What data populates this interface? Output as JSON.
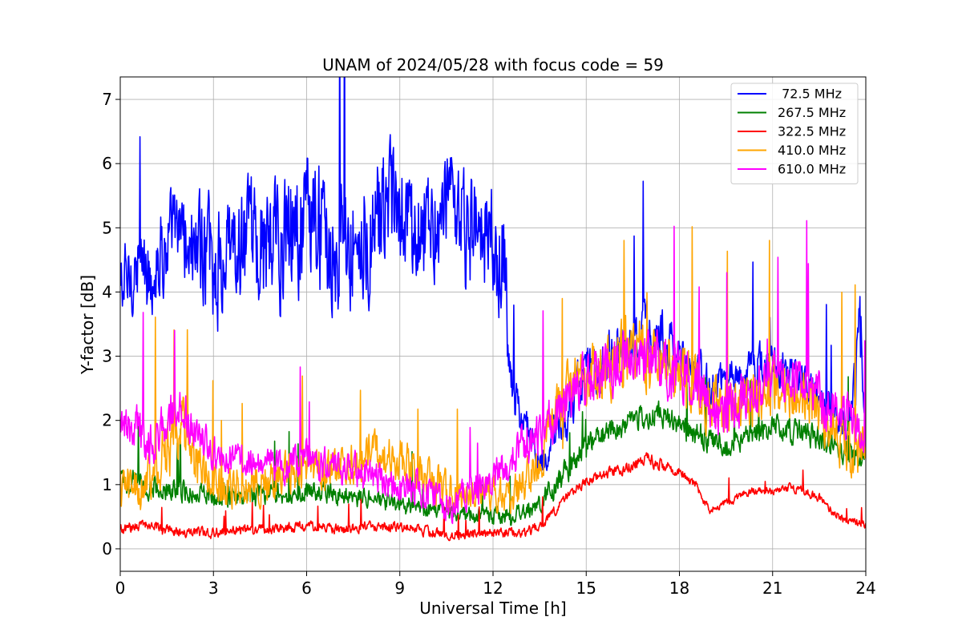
{
  "chart_data": {
    "type": "line",
    "title": "UNAM of 2024/05/28 with focus code = 59",
    "xlabel": "Universal Time [h]",
    "ylabel": "Y-factor [dB]",
    "xlim": [
      0,
      24
    ],
    "ylim": [
      -0.35,
      7.35
    ],
    "xticks": [
      0,
      3,
      6,
      9,
      12,
      15,
      18,
      21,
      24
    ],
    "yticks": [
      0,
      1,
      2,
      3,
      4,
      5,
      6,
      7
    ],
    "grid": true,
    "legend_position": "top-right",
    "series": [
      {
        "name": " 72.5 MHz",
        "color": "#0000ff",
        "x": [
          0,
          0.5,
          1,
          1.5,
          2,
          2.5,
          3,
          3.5,
          4,
          4.5,
          5,
          5.5,
          6,
          6.5,
          7,
          7.5,
          8,
          8.5,
          9,
          9.5,
          10,
          10.5,
          11,
          11.5,
          12,
          12.4,
          12.5,
          13,
          13.5,
          14,
          14.5,
          15,
          15.5,
          16,
          16.5,
          17,
          17.5,
          18,
          18.5,
          19,
          19.5,
          20,
          20.5,
          21,
          21.5,
          22,
          22.5,
          23,
          23.5,
          23.8,
          24
        ],
        "y": [
          4.0,
          4.4,
          4.3,
          4.8,
          4.9,
          4.6,
          4.4,
          4.5,
          4.6,
          4.8,
          4.7,
          4.9,
          5.1,
          5.0,
          4.8,
          4.9,
          5.0,
          5.1,
          5.2,
          5.0,
          5.3,
          5.1,
          5.0,
          4.9,
          4.7,
          4.5,
          2.6,
          2.0,
          1.4,
          1.7,
          2.2,
          2.7,
          2.9,
          3.2,
          3.3,
          3.4,
          3.3,
          2.9,
          2.8,
          2.5,
          2.6,
          2.7,
          2.8,
          2.9,
          2.8,
          2.6,
          2.3,
          2.1,
          2.0,
          3.5,
          2.6
        ],
        "spread": [
          1.0,
          0.9,
          1.0,
          1.1,
          1.0,
          1.2,
          1.4,
          1.3,
          1.4,
          1.6,
          1.6,
          1.6,
          1.5,
          1.6,
          1.8,
          1.7,
          1.6,
          1.5,
          1.4,
          1.5,
          1.5,
          1.4,
          1.5,
          1.4,
          1.5,
          1.6,
          0.7,
          0.5,
          0.4,
          0.5,
          0.6,
          0.6,
          0.6,
          0.6,
          0.6,
          0.6,
          0.6,
          0.6,
          0.5,
          0.5,
          0.5,
          0.5,
          0.5,
          0.5,
          0.5,
          0.4,
          0.4,
          0.4,
          0.4,
          1.3,
          0.6
        ]
      },
      {
        "name": "267.5 MHz",
        "color": "#008000",
        "x": [
          0,
          0.5,
          1,
          2,
          3,
          4,
          5,
          6,
          7,
          8,
          9,
          10,
          11,
          12,
          12.5,
          13,
          13.5,
          14,
          14.5,
          15,
          15.5,
          16,
          16.5,
          17,
          17.5,
          18,
          18.5,
          19,
          19.5,
          20,
          20.5,
          21,
          21.5,
          22,
          22.5,
          23,
          23.5,
          24
        ],
        "y": [
          1.1,
          1.0,
          0.95,
          0.9,
          0.85,
          0.8,
          0.85,
          0.9,
          0.85,
          0.75,
          0.7,
          0.6,
          0.55,
          0.5,
          0.5,
          0.6,
          0.7,
          1.0,
          1.3,
          1.6,
          1.8,
          1.9,
          2.0,
          2.1,
          2.05,
          1.9,
          1.8,
          1.7,
          1.6,
          1.7,
          1.8,
          1.9,
          1.85,
          1.8,
          1.7,
          1.6,
          1.5,
          1.45
        ],
        "spread": [
          0.3,
          0.3,
          0.25,
          0.25,
          0.25,
          0.25,
          0.25,
          0.25,
          0.25,
          0.25,
          0.25,
          0.2,
          0.2,
          0.2,
          0.2,
          0.2,
          0.25,
          0.3,
          0.3,
          0.3,
          0.3,
          0.3,
          0.3,
          0.3,
          0.3,
          0.3,
          0.3,
          0.3,
          0.3,
          0.3,
          0.3,
          0.3,
          0.3,
          0.3,
          0.3,
          0.3,
          0.3,
          0.3
        ]
      },
      {
        "name": "322.5 MHz",
        "color": "#ff0000",
        "x": [
          0,
          0.5,
          1,
          1.5,
          2,
          3,
          4,
          5,
          6,
          7,
          8,
          9,
          10,
          11,
          12,
          12.5,
          13,
          13.5,
          14,
          14.5,
          15,
          15.5,
          16,
          16.5,
          17,
          17.5,
          18,
          18.5,
          19,
          19.5,
          20,
          20.5,
          21,
          21.5,
          22,
          22.5,
          23,
          23.5,
          24
        ],
        "y": [
          0.3,
          0.35,
          0.4,
          0.3,
          0.25,
          0.25,
          0.3,
          0.3,
          0.35,
          0.3,
          0.35,
          0.35,
          0.25,
          0.2,
          0.25,
          0.25,
          0.25,
          0.35,
          0.6,
          0.9,
          1.05,
          1.15,
          1.2,
          1.3,
          1.4,
          1.3,
          1.2,
          1.0,
          0.6,
          0.7,
          0.85,
          0.9,
          0.9,
          0.95,
          0.9,
          0.8,
          0.55,
          0.4,
          0.4
        ],
        "spread": [
          0.12,
          0.12,
          0.12,
          0.12,
          0.12,
          0.12,
          0.12,
          0.12,
          0.12,
          0.12,
          0.12,
          0.12,
          0.12,
          0.12,
          0.12,
          0.12,
          0.12,
          0.12,
          0.12,
          0.12,
          0.12,
          0.12,
          0.15,
          0.15,
          0.15,
          0.15,
          0.12,
          0.12,
          0.1,
          0.1,
          0.1,
          0.1,
          0.1,
          0.1,
          0.1,
          0.1,
          0.1,
          0.1,
          0.1
        ]
      },
      {
        "name": "410.0 MHz",
        "color": "#ffa500",
        "x": [
          0,
          0.5,
          1,
          1.5,
          2,
          2.5,
          3,
          4,
          5,
          6,
          7,
          8,
          9,
          10,
          11,
          12,
          12.5,
          13,
          13.5,
          14,
          14.5,
          15,
          15.5,
          16,
          16.5,
          17,
          17.5,
          18,
          18.5,
          19,
          19.5,
          20,
          20.5,
          21,
          21.5,
          22,
          22.5,
          23,
          23.5,
          24
        ],
        "y": [
          1.0,
          0.9,
          1.2,
          1.6,
          2.0,
          1.2,
          1.0,
          1.0,
          1.1,
          1.2,
          1.2,
          1.5,
          1.4,
          1.0,
          0.8,
          0.9,
          0.8,
          1.0,
          1.3,
          2.0,
          2.4,
          2.6,
          2.8,
          2.9,
          3.0,
          3.0,
          2.9,
          2.7,
          2.5,
          2.3,
          2.2,
          2.3,
          2.4,
          2.5,
          2.5,
          2.4,
          2.2,
          1.8,
          1.5,
          1.6
        ],
        "spread": [
          0.6,
          0.5,
          0.6,
          0.8,
          0.8,
          0.6,
          0.5,
          0.5,
          0.5,
          0.5,
          0.5,
          0.5,
          0.5,
          0.5,
          0.4,
          0.4,
          0.4,
          0.5,
          0.6,
          0.8,
          0.8,
          0.8,
          0.8,
          0.8,
          0.8,
          0.8,
          0.8,
          0.8,
          0.7,
          0.7,
          0.7,
          0.7,
          0.7,
          0.7,
          0.7,
          0.7,
          0.7,
          0.6,
          0.6,
          0.6
        ]
      },
      {
        "name": "610.0 MHz",
        "color": "#ff00ff",
        "x": [
          0,
          0.5,
          1,
          1.5,
          2,
          2.5,
          3,
          4,
          5,
          6,
          7,
          8,
          9,
          10,
          10.5,
          11,
          12,
          12.5,
          13,
          13.5,
          14,
          14.5,
          15,
          15.5,
          16,
          16.5,
          17,
          17.5,
          18,
          18.5,
          19,
          19.5,
          20,
          20.5,
          21,
          21.5,
          22,
          22.5,
          23,
          23.5,
          24
        ],
        "y": [
          1.8,
          2.0,
          1.6,
          1.9,
          2.3,
          1.7,
          1.5,
          1.4,
          1.3,
          1.4,
          1.2,
          1.2,
          1.0,
          0.9,
          0.6,
          0.8,
          1.1,
          1.3,
          1.6,
          1.8,
          2.0,
          2.3,
          2.6,
          2.8,
          2.9,
          2.9,
          3.0,
          2.9,
          2.7,
          2.6,
          2.2,
          2.1,
          2.3,
          2.5,
          2.6,
          2.7,
          2.6,
          2.4,
          2.2,
          2.0,
          1.8
        ],
        "spread": [
          0.5,
          0.6,
          0.5,
          0.6,
          0.7,
          0.5,
          0.4,
          0.4,
          0.4,
          0.4,
          0.4,
          0.4,
          0.4,
          0.4,
          0.4,
          0.4,
          0.4,
          0.5,
          0.5,
          0.5,
          0.6,
          0.6,
          0.7,
          0.7,
          0.7,
          0.7,
          0.7,
          0.7,
          0.7,
          0.7,
          0.6,
          0.6,
          0.6,
          0.6,
          0.6,
          0.6,
          0.6,
          0.6,
          0.6,
          0.5,
          0.5
        ]
      }
    ]
  }
}
